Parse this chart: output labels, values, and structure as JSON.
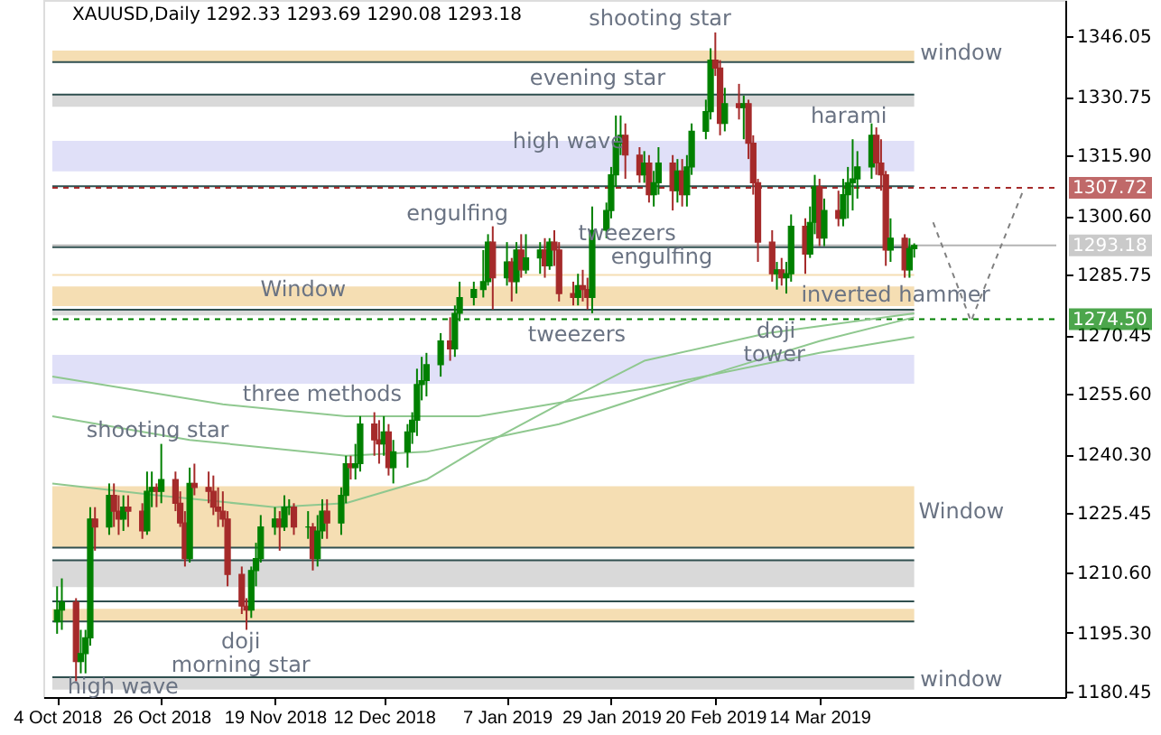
{
  "chart_data": {
    "type": "candlestick",
    "title": "XAUUSD,Daily  1292.33 1293.69 1290.08 1293.18",
    "x": [
      "2018-10-04",
      "2018-10-05",
      "2018-10-08",
      "2018-10-09",
      "2018-10-10",
      "2018-10-11",
      "2018-10-12",
      "2018-10-15",
      "2018-10-16",
      "2018-10-17",
      "2018-10-18",
      "2018-10-19",
      "2018-10-22",
      "2018-10-23",
      "2018-10-24",
      "2018-10-25",
      "2018-10-26",
      "2018-10-29",
      "2018-10-30",
      "2018-10-31",
      "2018-11-01",
      "2018-11-02",
      "2018-11-05",
      "2018-11-06",
      "2018-11-07",
      "2018-11-08",
      "2018-11-09",
      "2018-11-12",
      "2018-11-13",
      "2018-11-14",
      "2018-11-15",
      "2018-11-16",
      "2018-11-19",
      "2018-11-20",
      "2018-11-21",
      "2018-11-22",
      "2018-11-23",
      "2018-11-26",
      "2018-11-27",
      "2018-11-28",
      "2018-11-29",
      "2018-11-30",
      "2018-12-03",
      "2018-12-04",
      "2018-12-05",
      "2018-12-06",
      "2018-12-07",
      "2018-12-10",
      "2018-12-11",
      "2018-12-12",
      "2018-12-13",
      "2018-12-14",
      "2018-12-17",
      "2018-12-18",
      "2018-12-19",
      "2018-12-20",
      "2018-12-21",
      "2018-12-24",
      "2018-12-26",
      "2018-12-27",
      "2018-12-28",
      "2018-12-31",
      "2019-01-02",
      "2019-01-03",
      "2019-01-04",
      "2019-01-07",
      "2019-01-08",
      "2019-01-09",
      "2019-01-10",
      "2019-01-11",
      "2019-01-14",
      "2019-01-15",
      "2019-01-16",
      "2019-01-17",
      "2019-01-18",
      "2019-01-21",
      "2019-01-22",
      "2019-01-23",
      "2019-01-24",
      "2019-01-25",
      "2019-01-28",
      "2019-01-29",
      "2019-01-30",
      "2019-01-31",
      "2019-02-01",
      "2019-02-04",
      "2019-02-05",
      "2019-02-06",
      "2019-02-07",
      "2019-02-08",
      "2019-02-11",
      "2019-02-12",
      "2019-02-13",
      "2019-02-14",
      "2019-02-15",
      "2019-02-18",
      "2019-02-19",
      "2019-02-20",
      "2019-02-21",
      "2019-02-22",
      "2019-02-25",
      "2019-02-26",
      "2019-02-27",
      "2019-02-28",
      "2019-03-01",
      "2019-03-04",
      "2019-03-05",
      "2019-03-06",
      "2019-03-07",
      "2019-03-08",
      "2019-03-11",
      "2019-03-12",
      "2019-03-13",
      "2019-03-14",
      "2019-03-15",
      "2019-03-18",
      "2019-03-19",
      "2019-03-20",
      "2019-03-21",
      "2019-03-22",
      "2019-03-25",
      "2019-03-26",
      "2019-03-27",
      "2019-03-28",
      "2019-03-29",
      "2019-04-01",
      "2019-04-02",
      "2019-04-03"
    ],
    "ohlc": [
      [
        1198,
        1207,
        1195,
        1201
      ],
      [
        1201,
        1209,
        1196,
        1203
      ],
      [
        1203,
        1204,
        1183,
        1188
      ],
      [
        1188,
        1196,
        1185,
        1190
      ],
      [
        1190,
        1196,
        1185,
        1194
      ],
      [
        1194,
        1227,
        1192,
        1224
      ],
      [
        1224,
        1227,
        1216,
        1222
      ],
      [
        1222,
        1233,
        1220,
        1230
      ],
      [
        1230,
        1233,
        1222,
        1226
      ],
      [
        1226,
        1230,
        1220,
        1224
      ],
      [
        1224,
        1230,
        1221,
        1227
      ],
      [
        1227,
        1230,
        1222,
        1226
      ],
      [
        1226,
        1228,
        1219,
        1221
      ],
      [
        1221,
        1236,
        1220,
        1231
      ],
      [
        1231,
        1236,
        1227,
        1232
      ],
      [
        1232,
        1233,
        1227,
        1231
      ],
      [
        1231,
        1243,
        1228,
        1234
      ],
      [
        1234,
        1236,
        1226,
        1228
      ],
      [
        1228,
        1231,
        1222,
        1223
      ],
      [
        1223,
        1226,
        1212,
        1214
      ],
      [
        1214,
        1237,
        1213,
        1233
      ],
      [
        1233,
        1238,
        1230,
        1232
      ],
      [
        1232,
        1236,
        1228,
        1231
      ],
      [
        1231,
        1235,
        1225,
        1227
      ],
      [
        1227,
        1232,
        1222,
        1226
      ],
      [
        1226,
        1231,
        1222,
        1224
      ],
      [
        1224,
        1226,
        1207,
        1210
      ],
      [
        1210,
        1212,
        1200,
        1202
      ],
      [
        1202,
        1204,
        1196,
        1201
      ],
      [
        1201,
        1212,
        1199,
        1211
      ],
      [
        1211,
        1218,
        1207,
        1214
      ],
      [
        1214,
        1225,
        1213,
        1222
      ],
      [
        1222,
        1227,
        1220,
        1224
      ],
      [
        1224,
        1226,
        1216,
        1222
      ],
      [
        1222,
        1230,
        1221,
        1227
      ],
      [
        1227,
        1229,
        1225,
        1227
      ],
      [
        1227,
        1228,
        1220,
        1222
      ],
      [
        1222,
        1226,
        1219,
        1222
      ],
      [
        1222,
        1223,
        1211,
        1214
      ],
      [
        1214,
        1225,
        1212,
        1221
      ],
      [
        1221,
        1229,
        1219,
        1226
      ],
      [
        1226,
        1229,
        1219,
        1223
      ],
      [
        1223,
        1232,
        1220,
        1230
      ],
      [
        1230,
        1240,
        1228,
        1238
      ],
      [
        1238,
        1240,
        1234,
        1237
      ],
      [
        1237,
        1243,
        1234,
        1238
      ],
      [
        1238,
        1250,
        1236,
        1248
      ],
      [
        1248,
        1251,
        1240,
        1244
      ],
      [
        1244,
        1249,
        1238,
        1243
      ],
      [
        1243,
        1250,
        1240,
        1246
      ],
      [
        1246,
        1248,
        1235,
        1237
      ],
      [
        1237,
        1244,
        1233,
        1241
      ],
      [
        1241,
        1248,
        1237,
        1246
      ],
      [
        1246,
        1251,
        1243,
        1249
      ],
      [
        1249,
        1262,
        1245,
        1258
      ],
      [
        1258,
        1265,
        1254,
        1259
      ],
      [
        1259,
        1266,
        1255,
        1263
      ],
      [
        1263,
        1271,
        1260,
        1269
      ],
      [
        1269,
        1275,
        1264,
        1267
      ],
      [
        1267,
        1278,
        1265,
        1276
      ],
      [
        1276,
        1284,
        1274,
        1280
      ],
      [
        1280,
        1284,
        1278,
        1282
      ],
      [
        1282,
        1292,
        1280,
        1284
      ],
      [
        1284,
        1296,
        1283,
        1294
      ],
      [
        1294,
        1298,
        1277,
        1285
      ],
      [
        1285,
        1294,
        1283,
        1289
      ],
      [
        1289,
        1290,
        1279,
        1284
      ],
      [
        1284,
        1294,
        1281,
        1292
      ],
      [
        1292,
        1296,
        1285,
        1287
      ],
      [
        1287,
        1296,
        1286,
        1290
      ],
      [
        1290,
        1294,
        1286,
        1292
      ],
      [
        1292,
        1295,
        1285,
        1288
      ],
      [
        1288,
        1295,
        1287,
        1294
      ],
      [
        1294,
        1297,
        1288,
        1292
      ],
      [
        1292,
        1294,
        1279,
        1281
      ],
      [
        1281,
        1284,
        1278,
        1280
      ],
      [
        1280,
        1286,
        1278,
        1283
      ],
      [
        1283,
        1287,
        1279,
        1282
      ],
      [
        1282,
        1285,
        1277,
        1280
      ],
      [
        1280,
        1303,
        1276,
        1297
      ],
      [
        1297,
        1304,
        1295,
        1302
      ],
      [
        1302,
        1313,
        1300,
        1311
      ],
      [
        1311,
        1326,
        1308,
        1319
      ],
      [
        1319,
        1326,
        1316,
        1321
      ],
      [
        1321,
        1324,
        1310,
        1316
      ],
      [
        1316,
        1318,
        1309,
        1311
      ],
      [
        1311,
        1317,
        1309,
        1314
      ],
      [
        1314,
        1316,
        1304,
        1306
      ],
      [
        1306,
        1312,
        1303,
        1309
      ],
      [
        1309,
        1318,
        1306,
        1314
      ],
      [
        1314,
        1316,
        1302,
        1307
      ],
      [
        1307,
        1315,
        1304,
        1312
      ],
      [
        1312,
        1315,
        1303,
        1306
      ],
      [
        1306,
        1316,
        1303,
        1313
      ],
      [
        1313,
        1324,
        1311,
        1322
      ],
      [
        1322,
        1330,
        1320,
        1327
      ],
      [
        1327,
        1343,
        1325,
        1340
      ],
      [
        1340,
        1347,
        1336,
        1338
      ],
      [
        1338,
        1340,
        1321,
        1324
      ],
      [
        1324,
        1333,
        1322,
        1329
      ],
      [
        1329,
        1334,
        1325,
        1328
      ],
      [
        1328,
        1331,
        1320,
        1329
      ],
      [
        1329,
        1330,
        1315,
        1319
      ],
      [
        1319,
        1321,
        1306,
        1309
      ],
      [
        1309,
        1310,
        1289,
        1294
      ],
      [
        1294,
        1297,
        1284,
        1286
      ],
      [
        1286,
        1289,
        1282,
        1287
      ],
      [
        1287,
        1290,
        1283,
        1285
      ],
      [
        1285,
        1289,
        1281,
        1286
      ],
      [
        1286,
        1301,
        1284,
        1298
      ],
      [
        1298,
        1300,
        1286,
        1291
      ],
      [
        1291,
        1303,
        1290,
        1299
      ],
      [
        1299,
        1311,
        1296,
        1308
      ],
      [
        1308,
        1310,
        1293,
        1295
      ],
      [
        1295,
        1305,
        1293,
        1302
      ],
      [
        1302,
        1307,
        1298,
        1300
      ],
      [
        1300,
        1310,
        1298,
        1306
      ],
      [
        1306,
        1313,
        1300,
        1309
      ],
      [
        1309,
        1320,
        1302,
        1310
      ],
      [
        1310,
        1317,
        1305,
        1313
      ],
      [
        1313,
        1324,
        1310,
        1321
      ],
      [
        1321,
        1323,
        1311,
        1314
      ],
      [
        1314,
        1320,
        1307,
        1311
      ],
      [
        1311,
        1312,
        1288,
        1292
      ],
      [
        1292,
        1300,
        1289,
        1295
      ],
      [
        1295,
        1296,
        1285,
        1287
      ],
      [
        1287,
        1295,
        1285,
        1292.33
      ],
      [
        1292.33,
        1293.69,
        1290.08,
        1293.18
      ]
    ],
    "colors": [
      "#008000",
      "#008000",
      "#a52a2a",
      "#008000",
      "#008000",
      "#008000",
      "#a52a2a",
      "#008000",
      "#a52a2a",
      "#a52a2a",
      "#008000",
      "#a52a2a",
      "#a52a2a",
      "#008000",
      "#008000",
      "#a52a2a",
      "#008000",
      "#a52a2a",
      "#a52a2a",
      "#a52a2a",
      "#008000",
      "#a52a2a",
      "#a52a2a",
      "#a52a2a",
      "#a52a2a",
      "#a52a2a",
      "#a52a2a",
      "#a52a2a",
      "#a52a2a",
      "#008000",
      "#008000",
      "#008000",
      "#008000",
      "#a52a2a",
      "#008000",
      "#008000",
      "#a52a2a",
      "#008000",
      "#a52a2a",
      "#008000",
      "#008000",
      "#a52a2a",
      "#008000",
      "#008000",
      "#a52a2a",
      "#008000",
      "#008000",
      "#a52a2a",
      "#a52a2a",
      "#008000",
      "#a52a2a",
      "#008000",
      "#008000",
      "#008000",
      "#008000",
      "#008000",
      "#008000",
      "#008000",
      "#a52a2a",
      "#008000",
      "#008000",
      "#008000",
      "#008000",
      "#008000",
      "#a52a2a",
      "#008000",
      "#a52a2a",
      "#008000",
      "#a52a2a",
      "#008000",
      "#008000",
      "#a52a2a",
      "#008000",
      "#a52a2a",
      "#a52a2a",
      "#a52a2a",
      "#008000",
      "#a52a2a",
      "#a52a2a",
      "#008000",
      "#008000",
      "#008000",
      "#008000",
      "#008000",
      "#a52a2a",
      "#a52a2a",
      "#008000",
      "#a52a2a",
      "#008000",
      "#008000",
      "#a52a2a",
      "#008000",
      "#a52a2a",
      "#008000",
      "#008000",
      "#008000",
      "#008000",
      "#a52a2a",
      "#a52a2a",
      "#008000",
      "#a52a2a",
      "#008000",
      "#a52a2a",
      "#a52a2a",
      "#a52a2a",
      "#a52a2a",
      "#008000",
      "#a52a2a",
      "#008000",
      "#008000",
      "#a52a2a",
      "#008000",
      "#008000",
      "#a52a2a",
      "#008000",
      "#a52a2a",
      "#008000",
      "#008000",
      "#008000",
      "#008000",
      "#008000",
      "#a52a2a",
      "#a52a2a",
      "#a52a2a",
      "#008000",
      "#a52a2a",
      "#008000",
      "#008000"
    ],
    "series": [
      {
        "type": "line",
        "color": "#8fc88f",
        "x": [
          "2018-10-03",
          "2018-11-08",
          "2018-12-04",
          "2019-01-01",
          "2019-02-05",
          "2019-03-14",
          "2019-04-03"
        ],
        "values": [
          1260,
          1253,
          1250,
          1250,
          1257,
          1266,
          1270
        ]
      },
      {
        "type": "line",
        "color": "#8fc88f",
        "x": [
          "2018-10-03",
          "2018-11-01",
          "2018-12-04",
          "2018-12-21",
          "2019-01-18",
          "2019-02-23",
          "2019-03-14",
          "2019-04-03"
        ],
        "values": [
          1250,
          1244,
          1240,
          1241,
          1248,
          1262,
          1269,
          1275
        ]
      },
      {
        "type": "line",
        "color": "#8fc88f",
        "x": [
          "2018-10-03",
          "2018-10-25",
          "2018-11-19",
          "2018-12-04",
          "2018-12-21",
          "2019-01-04",
          "2019-01-18",
          "2019-02-05",
          "2019-03-03",
          "2019-04-03"
        ],
        "values": [
          1233,
          1230,
          1227,
          1228,
          1234,
          1244,
          1253,
          1264,
          1271,
          1276
        ]
      },
      {
        "type": "line",
        "color": "#808080",
        "line_style": "dashed",
        "x": [
          "2019-04-07",
          "2019-04-15",
          "2019-04-26"
        ],
        "values": [
          1299,
          1274,
          1307
        ]
      }
    ],
    "xlim": [
      "2018-10-03",
      "2019-05-03"
    ],
    "xticks": [
      {
        "value": "2018-10-04",
        "label": "4 Oct 2018"
      },
      {
        "value": "2018-10-26",
        "label": "26 Oct 2018"
      },
      {
        "value": "2018-11-19",
        "label": "19 Nov 2018"
      },
      {
        "value": "2018-12-12",
        "label": "12 Dec 2018"
      },
      {
        "value": "2019-01-07",
        "label": "7 Jan 2019"
      },
      {
        "value": "2019-01-29",
        "label": "29 Jan 2019"
      },
      {
        "value": "2019-02-20",
        "label": "20 Feb 2019"
      },
      {
        "value": "2019-03-14",
        "label": "14 Mar 2019"
      }
    ],
    "ylim": [
      1179,
      1355.2
    ],
    "yticks": [
      1346.05,
      1330.75,
      {
        "value": 1315.9,
        "label": "1315.90"
      },
      {
        "value": 1300.6,
        "label": "1300.60"
      },
      1285.75,
      1270.45,
      {
        "value": 1255.6,
        "label": "1255.60"
      },
      {
        "value": 1240.3,
        "label": "1240.30"
      },
      1225.45,
      {
        "value": 1210.6,
        "label": "1210.60"
      },
      {
        "value": 1195.3,
        "label": "1195.30"
      },
      1180.45
    ],
    "bands": [
      {
        "axis": "y",
        "from": 1339.5,
        "to": 1342.4,
        "color": "#f5deb3"
      },
      {
        "axis": "y",
        "from": 1328.2,
        "to": 1331.3,
        "color": "#d9d9d9"
      },
      {
        "axis": "y",
        "from": 1311.9,
        "to": 1319.6,
        "color": "#e0e0f8"
      },
      {
        "axis": "y",
        "from": 1277.8,
        "to": 1282.8,
        "color": "#f5deb3"
      },
      {
        "axis": "y",
        "from": 1275.5,
        "to": 1276.9,
        "color": "#d9d9d9"
      },
      {
        "axis": "y",
        "from": 1258.2,
        "to": 1265.5,
        "color": "#e0e0f8"
      },
      {
        "axis": "y",
        "from": 1216.8,
        "to": 1232.3,
        "color": "#f5deb3"
      },
      {
        "axis": "y",
        "from": 1206.8,
        "to": 1213.6,
        "color": "#d9d9d9"
      },
      {
        "axis": "y",
        "from": 1198.1,
        "to": 1201.3,
        "color": "#f5deb3"
      },
      {
        "axis": "y",
        "from": 1180.9,
        "to": 1184.0,
        "color": "#d9d9d9"
      }
    ],
    "ref_lines": [
      {
        "axis": "y",
        "value": 1339.5,
        "color": "#2f4f4f"
      },
      {
        "axis": "y",
        "value": 1331.3,
        "color": "#2f4f4f"
      },
      {
        "axis": "y",
        "value": 1308.1,
        "color": "#2f4f4f"
      },
      {
        "axis": "y",
        "value": 1292.7,
        "color": "#2f4f4f"
      },
      {
        "axis": "y",
        "value": 1285.7,
        "color": "#f5deb3"
      },
      {
        "axis": "y",
        "value": 1276.9,
        "color": "#2f4f4f"
      },
      {
        "axis": "y",
        "value": 1216.8,
        "color": "#2f4f4f"
      },
      {
        "axis": "y",
        "value": 1213.6,
        "color": "#2f4f4f"
      },
      {
        "axis": "y",
        "value": 1203.2,
        "color": "#2f4f4f"
      },
      {
        "axis": "y",
        "value": 1198.1,
        "color": "#2f4f4f"
      },
      {
        "axis": "y",
        "value": 1184.0,
        "color": "#2f4f4f"
      },
      {
        "axis": "y",
        "value": 1307.72,
        "label": "1307.72",
        "color": "#a52a2a",
        "line_style": "dashed"
      },
      {
        "axis": "y",
        "value": 1293.18,
        "label": "1293.18",
        "color": "#b4b4b4",
        "line_style": "solid"
      },
      {
        "axis": "y",
        "value": 1274.5,
        "label": "1274.50",
        "color": "#008000",
        "line_style": "dashed"
      }
    ],
    "annotations": [
      "shooting star",
      "evening star",
      "high wave",
      "harami",
      "engulfing",
      "tweezers",
      "engulfing",
      "Window",
      "tweezers",
      "inverted hammer",
      "doji",
      "tower",
      "three methods",
      "shooting star",
      "Window",
      "doji",
      "morning star",
      "high wave",
      "window",
      "window"
    ]
  }
}
